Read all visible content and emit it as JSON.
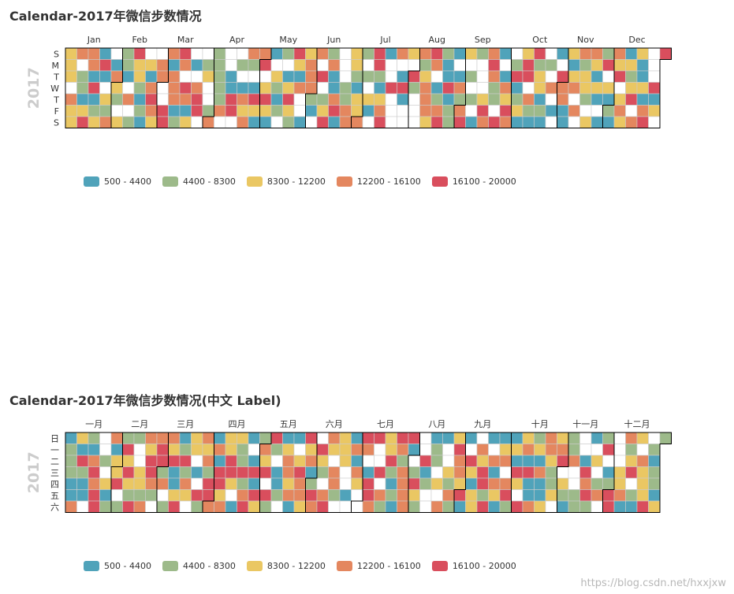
{
  "chart_data": [
    {
      "type": "heatmap",
      "subtype": "calendar",
      "title": "Calendar-2017年微信步数情况",
      "year": "2017",
      "range": [
        "2017-01-01",
        "2017-12-31"
      ],
      "month_labels": [
        "Jan",
        "Feb",
        "Mar",
        "Apr",
        "May",
        "Jun",
        "Jul",
        "Aug",
        "Sep",
        "Oct",
        "Nov",
        "Dec"
      ],
      "day_labels": [
        "S",
        "M",
        "T",
        "W",
        "T",
        "F",
        "S"
      ],
      "value_range": [
        500,
        20000
      ],
      "legend_position": "bottom-left",
      "pieces": [
        {
          "label": "500 - 4400",
          "min": 500,
          "max": 4400,
          "color": "#50a3ba"
        },
        {
          "label": "4400 - 8300",
          "min": 4400,
          "max": 8300,
          "color": "#9dba8a"
        },
        {
          "label": "8300 - 12200",
          "min": 8300,
          "max": 12200,
          "color": "#eac763"
        },
        {
          "label": "12200 - 16100",
          "min": 12200,
          "max": 16100,
          "color": "#e4875f"
        },
        {
          "label": "16100 - 20000",
          "min": 16100,
          "max": 20000,
          "color": "#d94e5d"
        }
      ],
      "seed": 11
    },
    {
      "type": "heatmap",
      "subtype": "calendar",
      "title": "Calendar-2017年微信步数情况(中文 Label)",
      "year": "2017",
      "range": [
        "2017-01-01",
        "2017-12-31"
      ],
      "month_labels": [
        "一月",
        "二月",
        "三月",
        "四月",
        "五月",
        "六月",
        "七月",
        "八月",
        "九月",
        "十月",
        "十一月",
        "十二月"
      ],
      "day_labels": [
        "日",
        "一",
        "二",
        "三",
        "四",
        "五",
        "六"
      ],
      "value_range": [
        500,
        20000
      ],
      "legend_position": "bottom-left",
      "pieces": [
        {
          "label": "500 - 4400",
          "min": 500,
          "max": 4400,
          "color": "#50a3ba"
        },
        {
          "label": "4400 - 8300",
          "min": 4400,
          "max": 8300,
          "color": "#9dba8a"
        },
        {
          "label": "8300 - 12200",
          "min": 8300,
          "max": 12200,
          "color": "#eac763"
        },
        {
          "label": "12200 - 16100",
          "min": 12200,
          "max": 16100,
          "color": "#e4875f"
        },
        {
          "label": "16100 - 20000",
          "min": 16100,
          "max": 20000,
          "color": "#d94e5d"
        }
      ],
      "seed": 29
    }
  ],
  "watermark": "https://blog.csdn.net/hxxjxw"
}
